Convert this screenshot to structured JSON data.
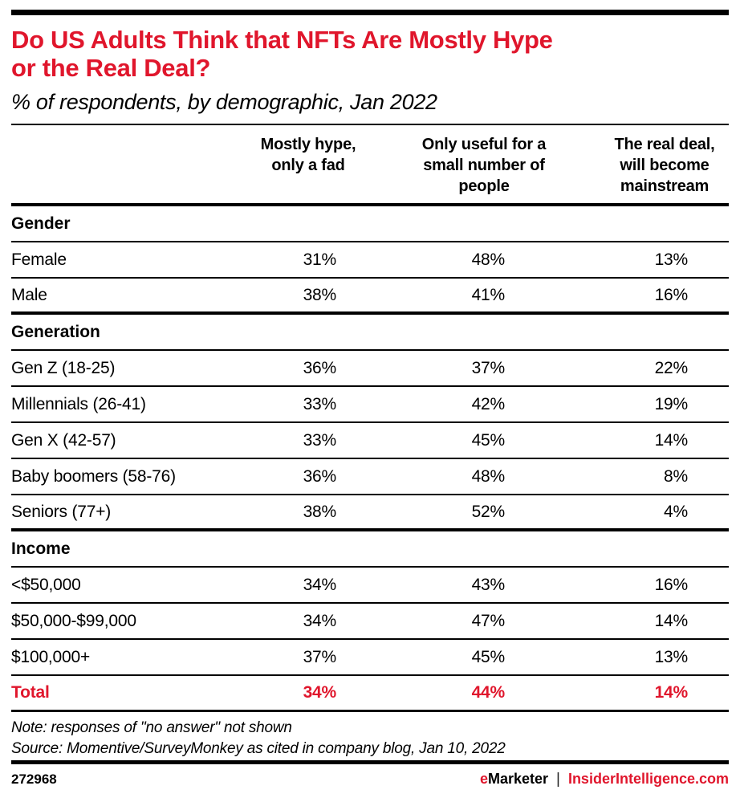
{
  "accent_red": "#e0162c",
  "chart_data": {
    "type": "table",
    "title": "Do US Adults Think that NFTs Are Mostly Hype\nor the Real Deal?",
    "subtitle": "% of respondents, by demographic, Jan 2022",
    "columns": [
      "Mostly hype,\nonly a fad",
      "Only useful for a\nsmall number of\npeople",
      "The real deal,\nwill become\nmainstream"
    ],
    "sections": [
      {
        "label": "Gender",
        "rows": [
          {
            "label": "Female",
            "values": [
              "31%",
              "48%",
              "13%"
            ]
          },
          {
            "label": "Male",
            "values": [
              "38%",
              "41%",
              "16%"
            ]
          }
        ]
      },
      {
        "label": "Generation",
        "rows": [
          {
            "label": "Gen Z (18-25)",
            "values": [
              "36%",
              "37%",
              "22%"
            ]
          },
          {
            "label": "Millennials (26-41)",
            "values": [
              "33%",
              "42%",
              "19%"
            ]
          },
          {
            "label": "Gen X (42-57)",
            "values": [
              "33%",
              "45%",
              "14%"
            ]
          },
          {
            "label": "Baby boomers (58-76)",
            "values": [
              "36%",
              "48%",
              "8%"
            ]
          },
          {
            "label": "Seniors (77+)",
            "values": [
              "38%",
              "52%",
              "4%"
            ]
          }
        ]
      },
      {
        "label": "Income",
        "rows": [
          {
            "label": "<$50,000",
            "values": [
              "34%",
              "43%",
              "16%"
            ]
          },
          {
            "label": "$50,000-$99,000",
            "values": [
              "34%",
              "47%",
              "14%"
            ]
          },
          {
            "label": "$100,000+",
            "values": [
              "37%",
              "45%",
              "13%"
            ]
          }
        ]
      }
    ],
    "total": {
      "label": "Total",
      "values": [
        "34%",
        "44%",
        "14%"
      ]
    },
    "note": "Note: responses of \"no answer\" not shown",
    "source": "Source: Momentive/SurveyMonkey as cited in company blog, Jan 10, 2022"
  },
  "footer": {
    "chart_id": "272968",
    "brand_e": "e",
    "brand_rest": "Marketer",
    "separator": "|",
    "site": "InsiderIntelligence.com"
  }
}
